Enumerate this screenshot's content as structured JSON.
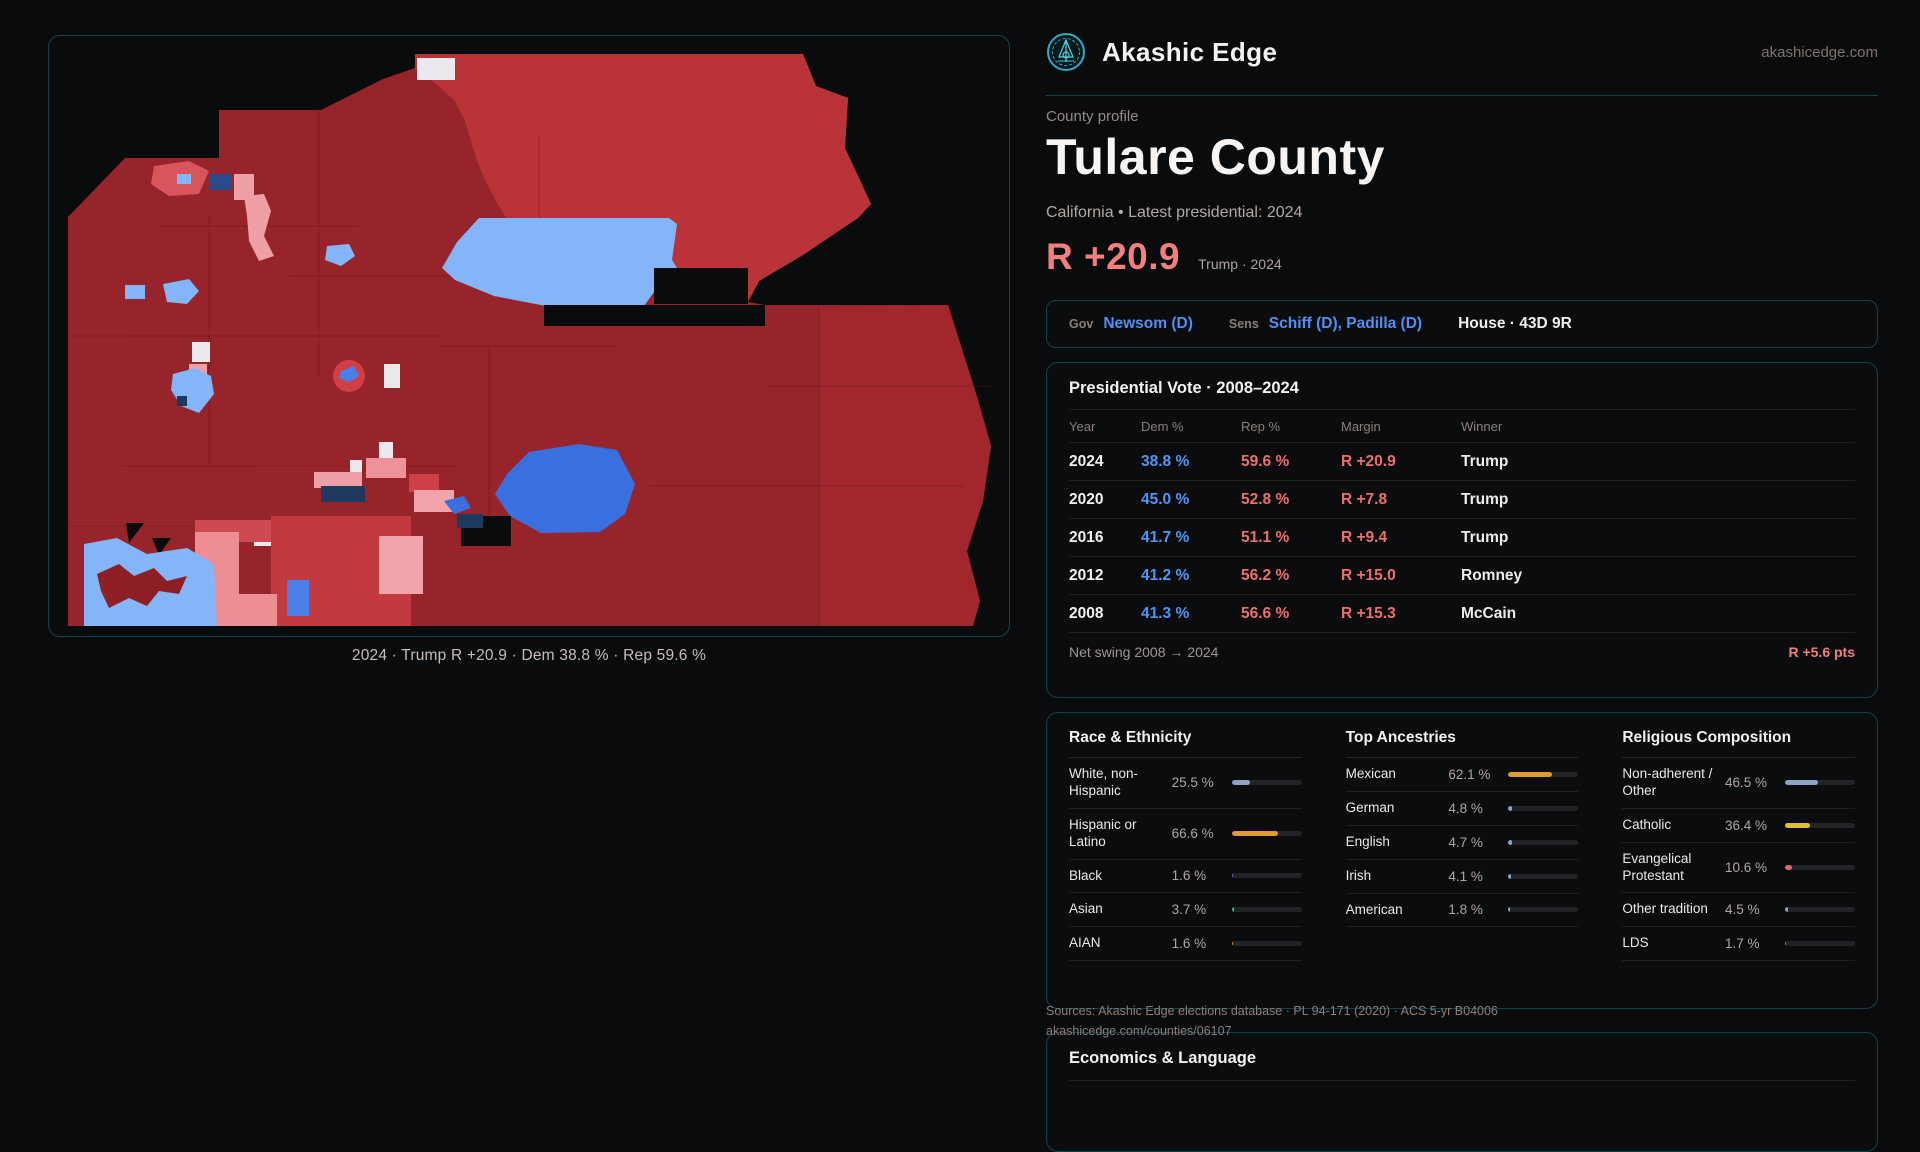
{
  "brand": {
    "name": "Akashic Edge",
    "domain": "akashicedge.com"
  },
  "header": {
    "eyebrow": "County profile",
    "title": "Tulare County",
    "subtitle": "California • Latest presidential: 2024",
    "margin_value": "R +20.9",
    "margin_context": "Trump · 2024"
  },
  "officials": {
    "gov_label": "Gov",
    "gov_value": "Newsom (D)",
    "sens_label": "Sens",
    "sens_value": "Schiff (D), Padilla (D)",
    "house_value": "House · 43D 9R"
  },
  "presidential": {
    "title": "Presidential Vote · 2008–2024",
    "columns": [
      "Year",
      "Dem %",
      "Rep %",
      "Margin",
      "Winner"
    ],
    "rows": [
      {
        "year": "2024",
        "dem": "38.8 %",
        "rep": "59.6 %",
        "margin": "R +20.9",
        "winner": "Trump"
      },
      {
        "year": "2020",
        "dem": "45.0 %",
        "rep": "52.8 %",
        "margin": "R +7.8",
        "winner": "Trump"
      },
      {
        "year": "2016",
        "dem": "41.7 %",
        "rep": "51.1 %",
        "margin": "R +9.4",
        "winner": "Trump"
      },
      {
        "year": "2012",
        "dem": "41.2 %",
        "rep": "56.2 %",
        "margin": "R +15.0",
        "winner": "Romney"
      },
      {
        "year": "2008",
        "dem": "41.3 %",
        "rep": "56.6 %",
        "margin": "R +15.3",
        "winner": "McCain"
      }
    ],
    "net_swing_label": "Net swing 2008 → 2024",
    "net_swing_value": "R +5.6 pts"
  },
  "chart_data": [
    {
      "type": "bar",
      "title": "Race & Ethnicity",
      "categories": [
        "White, non-Hispanic",
        "Hispanic or Latino",
        "Black",
        "Asian",
        "AIAN"
      ],
      "values": [
        25.5,
        66.6,
        1.6,
        3.7,
        1.6
      ],
      "labels": [
        "25.5 %",
        "66.6 %",
        "1.6 %",
        "3.7 %",
        "1.6 %"
      ],
      "bar_colors": [
        "#8ba3c7",
        "#e09a2f",
        "#6f66d6",
        "#2fbf8f",
        "#d8882c"
      ],
      "xlim": [
        0,
        100
      ]
    },
    {
      "type": "bar",
      "title": "Top Ancestries",
      "categories": [
        "Mexican",
        "German",
        "English",
        "Irish",
        "American"
      ],
      "values": [
        62.1,
        4.8,
        4.7,
        4.1,
        1.8
      ],
      "labels": [
        "62.1 %",
        "4.8 %",
        "4.7 %",
        "4.1 %",
        "1.8 %"
      ],
      "bar_colors": [
        "#e09a2f",
        "#8ba3c7",
        "#8ba3c7",
        "#8ba3c7",
        "#8ba3c7"
      ],
      "xlim": [
        0,
        100
      ]
    },
    {
      "type": "bar",
      "title": "Religious Composition",
      "categories": [
        "Non-adherent / Other",
        "Catholic",
        "Evangelical Protestant",
        "Other tradition",
        "LDS"
      ],
      "values": [
        46.5,
        36.4,
        10.6,
        4.5,
        1.7
      ],
      "labels": [
        "46.5 %",
        "36.4 %",
        "10.6 %",
        "4.5 %",
        "1.7 %"
      ],
      "bar_colors": [
        "#8ba3c7",
        "#e3bd33",
        "#e06767",
        "#8ba3c7",
        "#2fc0ab"
      ],
      "xlim": [
        0,
        100
      ]
    }
  ],
  "map": {
    "caption": "2024 · Trump R +20.9 · Dem 38.8 % · Rep 59.6 %"
  },
  "sources": {
    "line1": "Sources: Akashic Edge elections database · PL 94-171 (2020) · ACS 5-yr B04006",
    "line2": "akashicedge.com/counties/06107"
  },
  "economics": {
    "title": "Economics & Language"
  },
  "colors": {
    "accent_teal": "#17424c",
    "rep_coral": "#ee6f6f",
    "dem_blue": "#4f96f7",
    "map_dark_red": "#97242a",
    "map_bright_red": "#ba3339",
    "map_light_blue": "#83b5f8",
    "map_royal_blue": "#3a6fe0"
  }
}
